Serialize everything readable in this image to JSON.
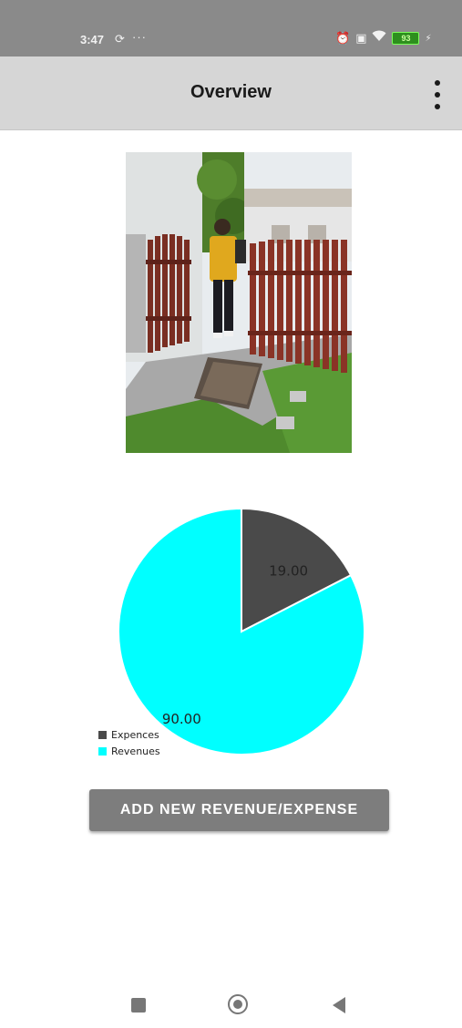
{
  "status_bar": {
    "time": "3:47",
    "sync_icon": "sync-icon",
    "more_indicator": "···",
    "icons": [
      "alarm-off-icon",
      "screen-icon",
      "wifi-icon"
    ],
    "battery_level": "93",
    "charging_icon": "bolt-icon"
  },
  "app_bar": {
    "title": "Overview",
    "menu_icon": "more-vertical-icon"
  },
  "photo": {
    "description_icon": "photo-image"
  },
  "chart_data": {
    "type": "pie",
    "series": [
      {
        "name": "Expences",
        "value": 19.0,
        "label": "19.00",
        "color": "#4a4a4a"
      },
      {
        "name": "Revenues",
        "value": 90.0,
        "label": "90.00",
        "color": "#00ffff"
      }
    ],
    "legend_position": "bottom-left"
  },
  "actions": {
    "add_label": "ADD NEW REVENUE/EXPENSE"
  },
  "nav_bar": {
    "items": [
      "recents-icon",
      "home-icon",
      "back-icon"
    ]
  }
}
